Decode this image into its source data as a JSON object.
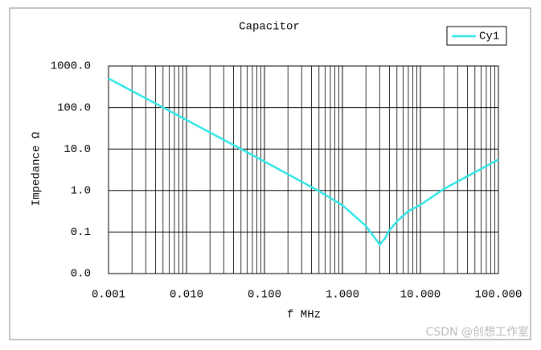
{
  "chart_data": {
    "type": "line",
    "title": "Capacitor",
    "xlabel": "f MHz",
    "ylabel": "Impedance Ω",
    "x": [
      0.001,
      0.01,
      0.1,
      0.5,
      1,
      2,
      2.5,
      3,
      3.5,
      4,
      5,
      7,
      10,
      20,
      50,
      100
    ],
    "series": [
      {
        "name": "Cy1",
        "color": "#33e6e6",
        "values": [
          500,
          50,
          5.0,
          0.97,
          0.44,
          0.14,
          0.08,
          0.05,
          0.07,
          0.11,
          0.18,
          0.32,
          0.45,
          1.09,
          2.77,
          5.56
        ]
      }
    ],
    "xscale": "log",
    "yscale": "log",
    "xlim": [
      0.001,
      100
    ],
    "xticks": [
      {
        "value": 0.001,
        "label": "0.001"
      },
      {
        "value": 0.01,
        "label": "0.010"
      },
      {
        "value": 0.1,
        "label": "0.100"
      },
      {
        "value": 1,
        "label": "1.000"
      },
      {
        "value": 10,
        "label": "10.000"
      },
      {
        "value": 100,
        "label": "100.000"
      }
    ],
    "ylim": [
      0.01,
      1000
    ],
    "yticks": [
      {
        "value": 0.01,
        "label": "0.0"
      },
      {
        "value": 0.1,
        "label": "0.1"
      },
      {
        "value": 1,
        "label": "1.0"
      },
      {
        "value": 10,
        "label": "10.0"
      },
      {
        "value": 100,
        "label": "100.0"
      },
      {
        "value": 1000,
        "label": "1000.0"
      }
    ],
    "grid": true,
    "minor_grid_x": true,
    "legend": "upper right",
    "watermark": "CSDN @创想工作室"
  }
}
